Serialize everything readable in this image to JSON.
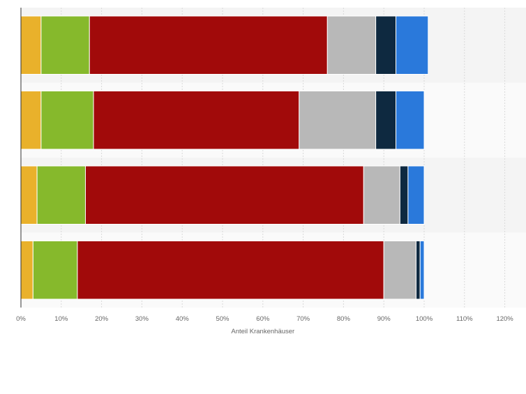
{
  "chart_data": {
    "type": "bar",
    "orientation": "horizontal",
    "stacked": true,
    "title": "",
    "xlabel": "Anteil Krankenhäuser",
    "ylabel": "",
    "xlim": [
      0,
      120
    ],
    "x_ticks": [
      "0%",
      "10%",
      "20%",
      "30%",
      "40%",
      "50%",
      "60%",
      "70%",
      "80%",
      "90%",
      "100%",
      "110%",
      "120%"
    ],
    "categories": [
      "",
      "",
      "",
      ""
    ],
    "grid": true,
    "legend": "none",
    "series": [
      {
        "color": "#e9b12b",
        "values": [
          5,
          5,
          4,
          3
        ]
      },
      {
        "color": "#86b92c",
        "values": [
          12,
          13,
          12,
          11
        ]
      },
      {
        "color": "#a10a0a",
        "values": [
          59,
          51,
          69,
          76
        ]
      },
      {
        "color": "#b8b8b8",
        "values": [
          12,
          19,
          9,
          8
        ]
      },
      {
        "color": "#0e2940",
        "values": [
          5,
          5,
          2,
          1
        ]
      },
      {
        "color": "#2a79db",
        "values": [
          8,
          7,
          4,
          1
        ]
      }
    ]
  }
}
